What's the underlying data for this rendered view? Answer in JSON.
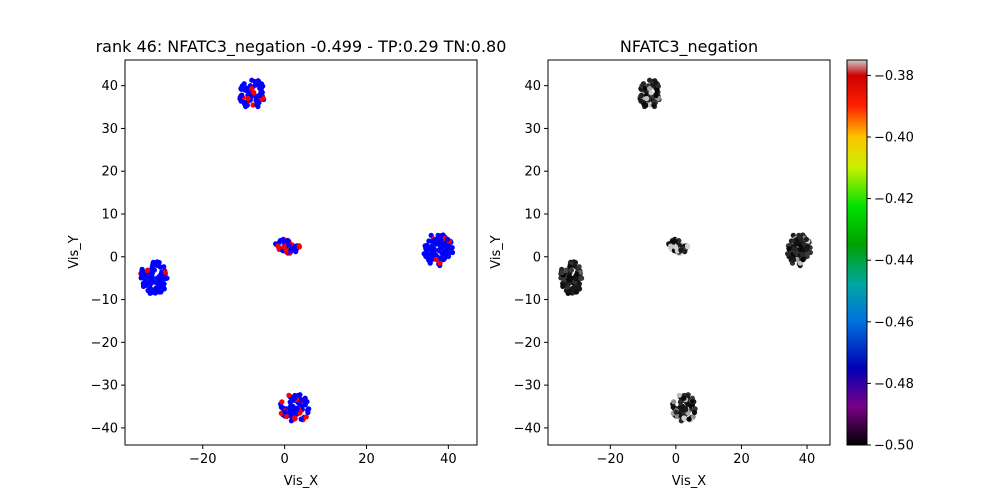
{
  "chart_data": [
    {
      "type": "scatter",
      "title": "rank 46: NFATC3_negation -0.499 - TP:0.29 TN:0.80",
      "xlabel": "Vis_X",
      "ylabel": "Vis_Y",
      "xlim": [
        -39,
        47
      ],
      "ylim": [
        -44,
        46
      ],
      "xticks": [
        -20,
        0,
        20,
        40
      ],
      "yticks": [
        -40,
        -30,
        -20,
        -10,
        0,
        10,
        20,
        30,
        40
      ],
      "color_mode": "binary",
      "colors": {
        "positive": "#ff0000",
        "negative": "#0000ff"
      },
      "clusters": [
        {
          "cx": -7.9,
          "cy": 38.0,
          "rx": 3.2,
          "ry": 3.6,
          "n": 70,
          "positive_fraction": 0.3,
          "value_mean": -0.476
        },
        {
          "cx": -32.0,
          "cy": -5.0,
          "rx": 3.4,
          "ry": 4.0,
          "n": 95,
          "positive_fraction": 0.02,
          "value_mean": -0.496
        },
        {
          "cx": 0.7,
          "cy": 2.5,
          "rx": 3.2,
          "ry": 1.7,
          "n": 50,
          "positive_fraction": 0.35,
          "value_mean": -0.472
        },
        {
          "cx": 37.5,
          "cy": 1.7,
          "rx": 3.6,
          "ry": 3.8,
          "n": 95,
          "positive_fraction": 0.18,
          "value_mean": -0.482
        },
        {
          "cx": 2.5,
          "cy": -35.3,
          "rx": 3.6,
          "ry": 3.4,
          "n": 85,
          "positive_fraction": 0.28,
          "value_mean": -0.478
        }
      ]
    },
    {
      "type": "scatter",
      "title": "NFATC3_negation",
      "xlabel": "Vis_X",
      "ylabel": "Vis_Y",
      "xlim": [
        -39,
        47
      ],
      "ylim": [
        -44,
        46
      ],
      "xticks": [
        -20,
        0,
        20,
        40
      ],
      "yticks": [
        -40,
        -30,
        -20,
        -10,
        0,
        10,
        20,
        30,
        40
      ],
      "color_mode": "colormap",
      "colormap": "nipy_spectral",
      "clim": [
        -0.5,
        -0.375
      ],
      "colorbar_ticks": [
        -0.38,
        -0.4,
        -0.42,
        -0.44,
        -0.46,
        -0.48,
        -0.5
      ],
      "colorbar_labels": [
        "−0.38",
        "−0.40",
        "−0.42",
        "−0.44",
        "−0.46",
        "−0.48",
        "−0.50"
      ],
      "clusters_ref": "same as first chart"
    }
  ]
}
